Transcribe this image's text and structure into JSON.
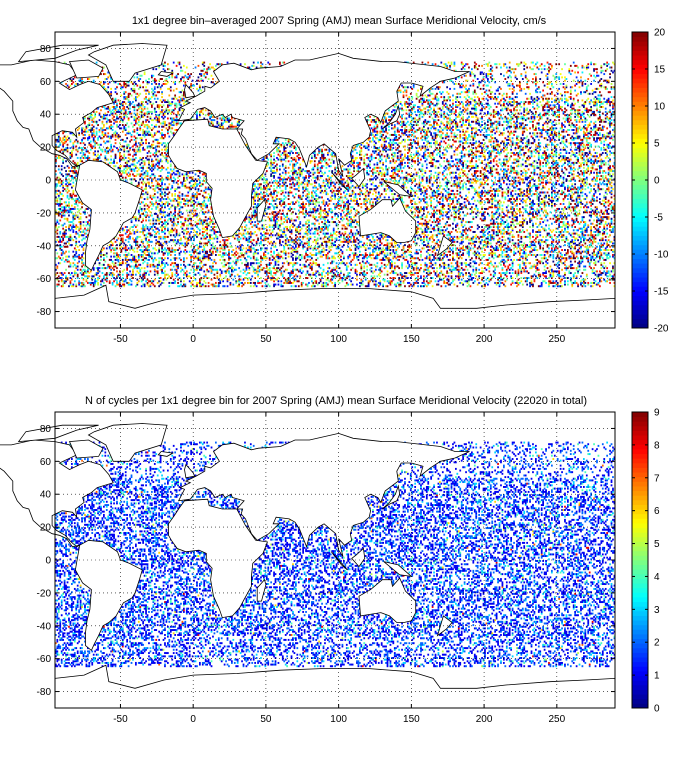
{
  "chart_data": [
    {
      "type": "heatmap",
      "title": "1x1 degree bin–averaged 2007 Spring (AMJ) mean Surface Meridional Velocity, cm/s",
      "xlabel": "",
      "ylabel": "",
      "xlim": [
        -95,
        290
      ],
      "ylim": [
        -90,
        90
      ],
      "x_ticks": [
        -50,
        0,
        50,
        100,
        150,
        200,
        250
      ],
      "y_ticks": [
        -80,
        -60,
        -40,
        -20,
        0,
        20,
        40,
        60,
        80
      ],
      "grid": true,
      "colorbar": {
        "min": -20,
        "max": 20,
        "ticks": [
          -20,
          -15,
          -10,
          -5,
          0,
          5,
          10,
          15,
          20
        ],
        "colormap": "jet"
      },
      "cell_size_deg": 1
    },
    {
      "type": "heatmap",
      "title": "N of cycles per 1x1 degree bin for 2007 Spring (AMJ) mean Surface Meridional Velocity (22020 in total)",
      "xlabel": "",
      "ylabel": "",
      "xlim": [
        -95,
        290
      ],
      "ylim": [
        -90,
        90
      ],
      "x_ticks": [
        -50,
        0,
        50,
        100,
        150,
        200,
        250
      ],
      "y_ticks": [
        -80,
        -60,
        -40,
        -20,
        0,
        20,
        40,
        60,
        80
      ],
      "grid": true,
      "colorbar": {
        "min": 0,
        "max": 9,
        "ticks": [
          0,
          1,
          2,
          3,
          4,
          5,
          6,
          7,
          8,
          9
        ],
        "colormap": "jet"
      },
      "cell_size_deg": 1
    }
  ],
  "colors": {
    "axes": "#000000",
    "background": "#ffffff",
    "coast": "#000000",
    "grid": "#000000"
  }
}
